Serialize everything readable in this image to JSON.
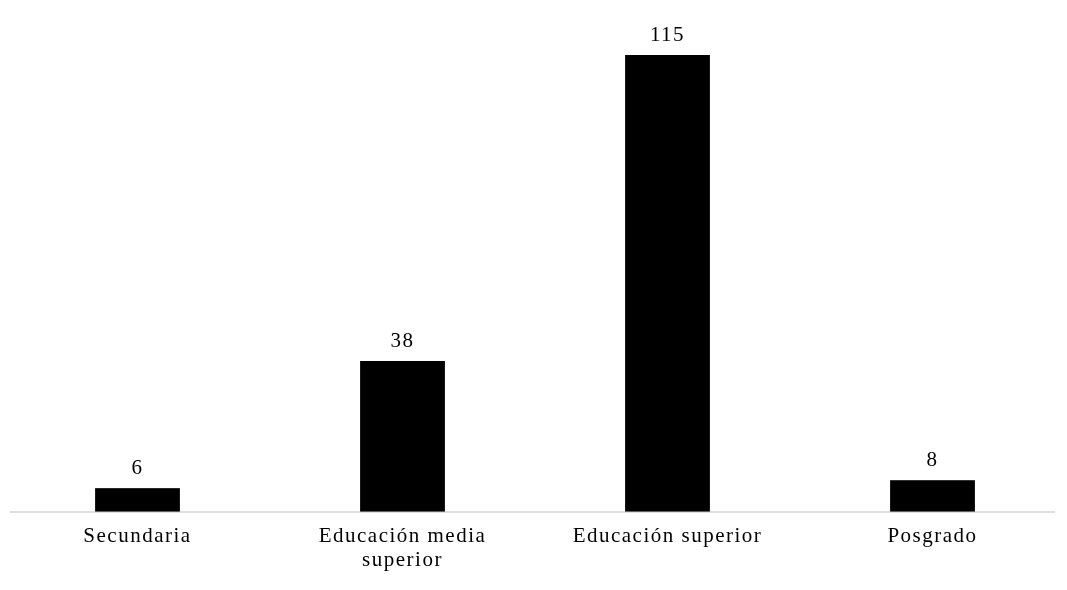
{
  "chart_data": {
    "type": "bar",
    "categories": [
      "Secundaria",
      "Educación media superior",
      "Educación superior",
      "Posgrado"
    ],
    "values": [
      6,
      38,
      115,
      8
    ],
    "color": "#000000",
    "data_labels": true
  }
}
